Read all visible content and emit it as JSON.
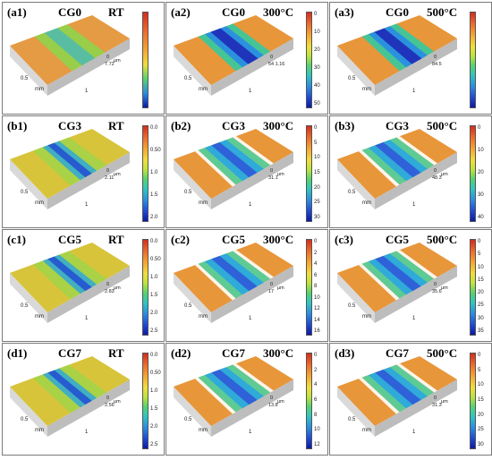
{
  "figure": {
    "rows": [
      {
        "row": "a",
        "code": "CG0",
        "panels": [
          {
            "label": "(a1)",
            "cond": "RT",
            "unit": "μm",
            "cbar": "warm",
            "ticks": [],
            "zmax": "0",
            "zval": "7.72",
            "style": "flat"
          },
          {
            "label": "(a2)",
            "cond": "300°C",
            "unit": "",
            "cbar": "full",
            "ticks": [
              "0",
              "10",
              "20",
              "30",
              "40",
              "50"
            ],
            "zmax": "0",
            "zval": "54 1.16",
            "style": "deep"
          },
          {
            "label": "(a3)",
            "cond": "500°C",
            "unit": "",
            "cbar": "full",
            "ticks": [],
            "zmax": "0",
            "zval": "84.5",
            "style": "deep"
          }
        ]
      },
      {
        "row": "b",
        "code": "CG3",
        "panels": [
          {
            "label": "(b1)",
            "cond": "RT",
            "unit": "μm",
            "cbar": "full",
            "ticks": [
              "0.0",
              "0.50",
              "1.0",
              "1.5",
              "2.0"
            ],
            "zmax": "0",
            "zval": "2.11",
            "style": "rough"
          },
          {
            "label": "(b2)",
            "cond": "300°C",
            "unit": "μm",
            "cbar": "full",
            "ticks": [
              "0",
              "5",
              "10",
              "15",
              "20",
              "25",
              "30"
            ],
            "zmax": "0",
            "zval": "31.1",
            "style": "track"
          },
          {
            "label": "(b3)",
            "cond": "500°C",
            "unit": "μm",
            "cbar": "full",
            "ticks": [
              "0",
              "10",
              "20",
              "30",
              "40"
            ],
            "zmax": "0",
            "zval": "48.3",
            "style": "track"
          }
        ]
      },
      {
        "row": "c",
        "code": "CG5",
        "panels": [
          {
            "label": "(c1)",
            "cond": "RT",
            "unit": "μm",
            "cbar": "full",
            "ticks": [
              "0.0",
              "0.50",
              "1.0",
              "1.5",
              "2.0",
              "2.5"
            ],
            "zmax": "0",
            "zval": "2.83",
            "style": "rough"
          },
          {
            "label": "(c2)",
            "cond": "300°C",
            "unit": "μm",
            "cbar": "full",
            "ticks": [
              "0",
              "2",
              "4",
              "6",
              "8",
              "10",
              "12",
              "14",
              "16"
            ],
            "zmax": "0",
            "zval": "17",
            "style": "track"
          },
          {
            "label": "(c3)",
            "cond": "500°C",
            "unit": "μm",
            "cbar": "full",
            "ticks": [
              "0",
              "5",
              "10",
              "15",
              "20",
              "25",
              "30",
              "35"
            ],
            "zmax": "0",
            "zval": "35.6",
            "style": "track"
          }
        ]
      },
      {
        "row": "d",
        "code": "CG7",
        "panels": [
          {
            "label": "(d1)",
            "cond": "RT",
            "unit": "μm",
            "cbar": "full",
            "ticks": [
              "0.0",
              "0.50",
              "1.0",
              "1.5",
              "2.0",
              "2.5"
            ],
            "zmax": "0",
            "zval": "2.56",
            "style": "rough"
          },
          {
            "label": "(d2)",
            "cond": "300°C",
            "unit": "μm",
            "cbar": "full",
            "ticks": [
              "0",
              "2",
              "4",
              "6",
              "8",
              "10",
              "12"
            ],
            "zmax": "0",
            "zval": "13.8",
            "style": "track"
          },
          {
            "label": "(d3)",
            "cond": "500°C",
            "unit": "μm",
            "cbar": "full",
            "ticks": [
              "0",
              "5",
              "10",
              "15",
              "20",
              "25",
              "30"
            ],
            "zmax": "0",
            "zval": "31.3",
            "style": "track"
          }
        ]
      }
    ],
    "axis_labels": [
      "0.5",
      "1",
      "mm"
    ]
  }
}
